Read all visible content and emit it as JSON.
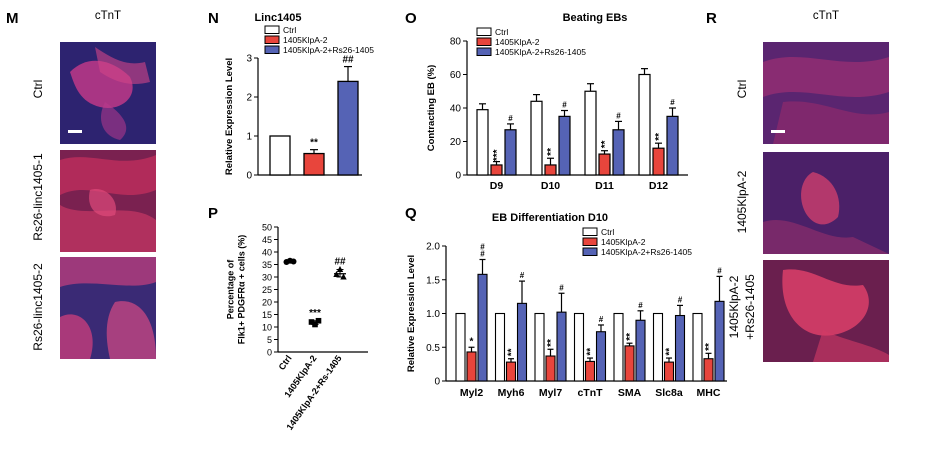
{
  "panels": {
    "M": {
      "letter": "M",
      "title": "cTnT",
      "rows": [
        "Ctrl",
        "Rs26-linc1405-1",
        "Rs26-linc1405-2"
      ]
    },
    "N": {
      "letter": "N"
    },
    "O": {
      "letter": "O"
    },
    "P": {
      "letter": "P"
    },
    "Q": {
      "letter": "Q"
    },
    "R": {
      "letter": "R",
      "title": "cTnT",
      "rows": [
        "Ctrl",
        "1405KlpA-2",
        "1405KlpA-2",
        "+Rs26-1405"
      ]
    }
  },
  "colors": {
    "ctrl": "#ffffff",
    "klp": "#e8453c",
    "rs": "#5563b5",
    "stain_bg": "#2a1f6e",
    "stain_fg": "#e2336f"
  },
  "chart_data": [
    {
      "id": "N",
      "type": "bar",
      "title": "Linc1405",
      "ylabel": "Relative Expression Level",
      "ylim": [
        0,
        3
      ],
      "yticks": [
        "0",
        "1",
        "2",
        "3"
      ],
      "legend": [
        "Ctrl",
        "1405KlpA-2",
        "1405KlpA-2+Rs26-1405"
      ],
      "legend_position": "top-left",
      "categories": [
        "Ctrl",
        "1405KlpA-2",
        "1405KlpA-2+Rs26-1405"
      ],
      "values": [
        1.0,
        0.55,
        2.4
      ],
      "errors": [
        0,
        0.1,
        0.38
      ],
      "annotations": [
        "",
        "**",
        "##"
      ]
    },
    {
      "id": "O",
      "type": "bar",
      "title": "Beating  EBs",
      "ylabel": "Contracting  EB (%)",
      "ylim": [
        0,
        80
      ],
      "yticks": [
        "0",
        "20",
        "40",
        "60",
        "80"
      ],
      "legend": [
        "Ctrl",
        "1405KlpA-2",
        "1405KlpA-2+Rs26-1405"
      ],
      "legend_position": "top-left",
      "categories": [
        "D9",
        "D10",
        "D11",
        "D12"
      ],
      "series": [
        {
          "name": "Ctrl",
          "values": [
            39,
            44,
            50,
            60
          ],
          "errors": [
            3.5,
            4,
            4.5,
            3.5
          ]
        },
        {
          "name": "1405KlpA-2",
          "values": [
            6,
            6,
            12.5,
            16
          ],
          "errors": [
            2,
            4,
            2,
            3
          ]
        },
        {
          "name": "1405KlpA-2+Rs26-1405",
          "values": [
            27,
            35,
            27,
            35
          ],
          "errors": [
            3.5,
            3.5,
            5,
            5
          ]
        }
      ],
      "annotations": [
        [
          "",
          "***",
          "#"
        ],
        [
          "",
          "**",
          "#"
        ],
        [
          "",
          "**",
          "#"
        ],
        [
          "",
          "**",
          "#"
        ]
      ]
    },
    {
      "id": "P",
      "type": "scatter",
      "ylabel": "Percentage of\nFlk1+ PDGFRα + cells (%)",
      "ylim": [
        0,
        50
      ],
      "yticks": [
        "0",
        "5",
        "10",
        "15",
        "20",
        "25",
        "30",
        "35",
        "40",
        "45",
        "50"
      ],
      "categories": [
        "Ctrl",
        "1405KlpA-2",
        "1405KlpA-2+Rs-1405"
      ],
      "points": [
        [
          36,
          36.5,
          36.2
        ],
        [
          12,
          11,
          12.5
        ],
        [
          31,
          33,
          30
        ]
      ],
      "means": [
        36.2,
        11.8,
        31.3
      ],
      "annotations": [
        "",
        "***",
        "##"
      ]
    },
    {
      "id": "Q",
      "type": "bar",
      "title": "EB Differentiation D10",
      "ylabel": "Relative Expression Level",
      "ylim": [
        0,
        2
      ],
      "yticks": [
        "0",
        "0.5",
        "1.0",
        "1.5",
        "2.0"
      ],
      "legend": [
        "Ctrl",
        "1405KlpA-2",
        "1405KlpA-2+Rs26-1405"
      ],
      "legend_position": "top-right",
      "categories": [
        "Myl2",
        "Myh6",
        "Myl7",
        "cTnT",
        "SMA",
        "Slc8a",
        "MHC"
      ],
      "series": [
        {
          "name": "Ctrl",
          "values": [
            1,
            1,
            1,
            1,
            1,
            1,
            1
          ],
          "errors": [
            0,
            0,
            0,
            0,
            0,
            0,
            0
          ]
        },
        {
          "name": "1405KlpA-2",
          "values": [
            0.43,
            0.28,
            0.37,
            0.29,
            0.52,
            0.28,
            0.33
          ],
          "errors": [
            0.07,
            0.05,
            0.1,
            0.05,
            0.04,
            0.06,
            0.08
          ]
        },
        {
          "name": "1405KlpA-2+Rs26-1405",
          "values": [
            1.58,
            1.15,
            1.02,
            0.73,
            0.9,
            0.97,
            1.18
          ],
          "errors": [
            0.22,
            0.33,
            0.28,
            0.1,
            0.14,
            0.15,
            0.37
          ]
        }
      ],
      "annotations": [
        [
          "",
          "*",
          "#\n#"
        ],
        [
          "",
          "**",
          "#"
        ],
        [
          "",
          "**",
          "#"
        ],
        [
          "",
          "**",
          "#"
        ],
        [
          "",
          "**",
          "#"
        ],
        [
          "",
          "**",
          "#"
        ],
        [
          "",
          "**",
          "#"
        ]
      ]
    }
  ]
}
